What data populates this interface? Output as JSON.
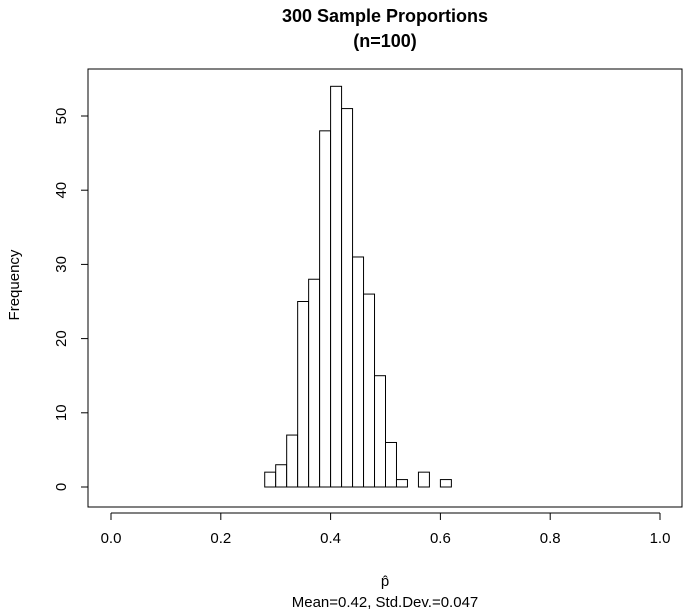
{
  "chart_data": {
    "type": "bar",
    "title_line1": "300 Sample Proportions",
    "title_line2": "(n=100)",
    "ylabel": "Frequency",
    "xlabel_symbol": "p̂",
    "xlabel_stats": "Mean=0.42, Std.Dev.=0.047",
    "xlim": [
      -0.02,
      1.02
    ],
    "ylim": [
      0,
      56
    ],
    "x_ticks": [
      0.0,
      0.2,
      0.4,
      0.6,
      0.8,
      1.0
    ],
    "x_tick_labels": [
      "0.0",
      "0.2",
      "0.4",
      "0.6",
      "0.8",
      "1.0"
    ],
    "y_ticks": [
      0,
      10,
      20,
      30,
      40,
      50
    ],
    "y_tick_labels": [
      "0",
      "10",
      "20",
      "30",
      "40",
      "50"
    ],
    "bin_width": 0.02,
    "bin_starts": [
      0.28,
      0.3,
      0.32,
      0.34,
      0.36,
      0.38,
      0.4,
      0.42,
      0.44,
      0.46,
      0.48,
      0.5,
      0.52,
      0.54,
      0.56,
      0.58,
      0.6
    ],
    "values": [
      2,
      3,
      7,
      25,
      28,
      48,
      54,
      51,
      31,
      26,
      15,
      6,
      1,
      0,
      2,
      0,
      1
    ],
    "grid": false,
    "legend": "none"
  }
}
